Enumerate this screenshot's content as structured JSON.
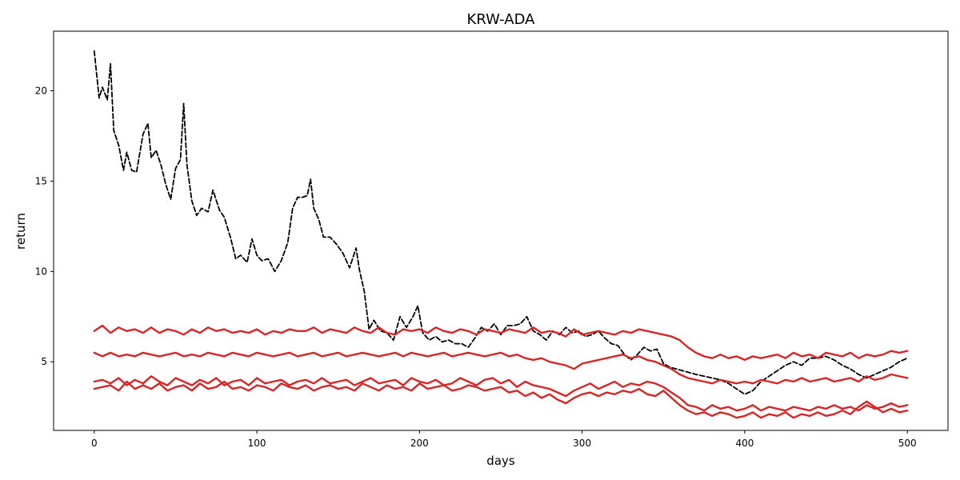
{
  "chart_data": {
    "type": "line",
    "title": "KRW-ADA",
    "xlabel": "days",
    "ylabel": "return",
    "xlim": [
      -25,
      525
    ],
    "ylim": [
      1.2,
      23.3
    ],
    "x_ticks": [
      0,
      100,
      200,
      300,
      400,
      500
    ],
    "y_ticks": [
      5,
      10,
      15,
      20
    ],
    "grid": false,
    "legend": "none",
    "series": [
      {
        "style": "dashed",
        "color": "#000000",
        "x": [
          0,
          3,
          5,
          8,
          10,
          12,
          15,
          18,
          20,
          23,
          26,
          30,
          33,
          35,
          38,
          41,
          44,
          47,
          50,
          53,
          55,
          57,
          60,
          63,
          66,
          70,
          73,
          77,
          80,
          84,
          87,
          90,
          94,
          97,
          100,
          103,
          107,
          111,
          115,
          119,
          122,
          125,
          128,
          131,
          133,
          135,
          138,
          141,
          145,
          149,
          153,
          157,
          161,
          163,
          166,
          169,
          172,
          176,
          180,
          184,
          188,
          192,
          196,
          199,
          202,
          206,
          210,
          214,
          218,
          222,
          226,
          230,
          234,
          238,
          242,
          246,
          250,
          254,
          258,
          262,
          266,
          270,
          274,
          278,
          282,
          286,
          290,
          294,
          298,
          302,
          306,
          310,
          314,
          318,
          322,
          326,
          330,
          334,
          338,
          342,
          346,
          350,
          354,
          358,
          362,
          366,
          370,
          375,
          380,
          385,
          390,
          395,
          400,
          405,
          410,
          415,
          420,
          425,
          430,
          435,
          440,
          445,
          450,
          455,
          460,
          465,
          470,
          475,
          480,
          485,
          490,
          495,
          500
        ],
        "y": [
          22.2,
          19.6,
          20.2,
          19.5,
          21.5,
          17.8,
          17.0,
          15.6,
          16.6,
          15.6,
          15.5,
          17.6,
          18.2,
          16.3,
          16.7,
          15.9,
          14.8,
          14.0,
          15.7,
          16.2,
          19.3,
          15.9,
          13.9,
          13.1,
          13.5,
          13.3,
          14.5,
          13.4,
          13.0,
          11.8,
          10.7,
          10.9,
          10.5,
          11.8,
          10.9,
          10.6,
          10.7,
          10.0,
          10.6,
          11.6,
          13.5,
          14.1,
          14.1,
          14.2,
          15.1,
          13.5,
          12.9,
          11.9,
          11.9,
          11.5,
          11.0,
          10.2,
          11.3,
          10.1,
          8.9,
          6.8,
          7.3,
          6.7,
          6.6,
          6.2,
          7.5,
          6.9,
          7.5,
          8.1,
          6.6,
          6.2,
          6.4,
          6.1,
          6.2,
          6.0,
          6.0,
          5.8,
          6.3,
          6.9,
          6.7,
          7.1,
          6.5,
          7.0,
          7.0,
          7.1,
          7.5,
          6.7,
          6.5,
          6.2,
          6.7,
          6.5,
          6.9,
          6.6,
          6.7,
          6.4,
          6.5,
          6.7,
          6.3,
          6.0,
          5.9,
          5.4,
          5.1,
          5.4,
          5.8,
          5.6,
          5.7,
          4.9,
          4.7,
          4.6,
          4.5,
          4.4,
          4.3,
          4.2,
          4.1,
          4.0,
          3.8,
          3.5,
          3.2,
          3.4,
          3.9,
          4.2,
          4.5,
          4.8,
          5.0,
          4.8,
          5.2,
          5.2,
          5.3,
          5.1,
          4.8,
          4.6,
          4.3,
          4.1,
          4.3,
          4.5,
          4.7,
          5.0,
          5.2
        ]
      },
      {
        "style": "solid",
        "color": "#d62728",
        "x": [
          0,
          5,
          10,
          15,
          20,
          25,
          30,
          35,
          40,
          45,
          50,
          55,
          60,
          65,
          70,
          75,
          80,
          85,
          90,
          95,
          100,
          105,
          110,
          115,
          120,
          125,
          130,
          135,
          140,
          145,
          150,
          155,
          160,
          165,
          170,
          175,
          180,
          185,
          190,
          195,
          200,
          205,
          210,
          215,
          220,
          225,
          230,
          235,
          240,
          245,
          250,
          255,
          260,
          265,
          270,
          275,
          280,
          285,
          290,
          295,
          300,
          305,
          310,
          315,
          320,
          325,
          330,
          335,
          340,
          345,
          350,
          355,
          360,
          365,
          370,
          375,
          380,
          385,
          390,
          395,
          400,
          405,
          410,
          415,
          420,
          425,
          430,
          435,
          440,
          445,
          450,
          455,
          460,
          465,
          470,
          475,
          480,
          485,
          490,
          495,
          500
        ],
        "y": [
          6.7,
          7.0,
          6.6,
          6.9,
          6.7,
          6.8,
          6.6,
          6.9,
          6.6,
          6.8,
          6.7,
          6.5,
          6.8,
          6.6,
          6.9,
          6.7,
          6.8,
          6.6,
          6.7,
          6.6,
          6.8,
          6.5,
          6.7,
          6.6,
          6.8,
          6.7,
          6.7,
          6.9,
          6.6,
          6.8,
          6.7,
          6.6,
          6.9,
          6.7,
          6.6,
          6.9,
          6.6,
          6.5,
          6.8,
          6.7,
          6.8,
          6.6,
          6.9,
          6.7,
          6.6,
          6.8,
          6.7,
          6.5,
          6.8,
          6.7,
          6.6,
          6.8,
          6.7,
          6.6,
          6.9,
          6.6,
          6.7,
          6.6,
          6.4,
          6.8,
          6.5,
          6.6,
          6.7,
          6.6,
          6.5,
          6.7,
          6.6,
          6.8,
          6.7,
          6.6,
          6.5,
          6.4,
          6.2,
          5.8,
          5.5,
          5.3,
          5.2,
          5.4,
          5.2,
          5.3,
          5.1,
          5.3,
          5.2,
          5.3,
          5.4,
          5.2,
          5.5,
          5.3,
          5.4,
          5.2,
          5.5,
          5.4,
          5.3,
          5.5,
          5.2,
          5.4,
          5.3,
          5.4,
          5.6,
          5.5,
          5.6
        ]
      },
      {
        "style": "solid",
        "color": "#d62728",
        "x": [
          0,
          5,
          10,
          15,
          20,
          25,
          30,
          35,
          40,
          45,
          50,
          55,
          60,
          65,
          70,
          75,
          80,
          85,
          90,
          95,
          100,
          105,
          110,
          115,
          120,
          125,
          130,
          135,
          140,
          145,
          150,
          155,
          160,
          165,
          170,
          175,
          180,
          185,
          190,
          195,
          200,
          205,
          210,
          215,
          220,
          225,
          230,
          235,
          240,
          245,
          250,
          255,
          260,
          265,
          270,
          275,
          280,
          285,
          290,
          295,
          300,
          305,
          310,
          315,
          320,
          325,
          330,
          335,
          340,
          345,
          350,
          355,
          360,
          365,
          370,
          375,
          380,
          385,
          390,
          395,
          400,
          405,
          410,
          415,
          420,
          425,
          430,
          435,
          440,
          445,
          450,
          455,
          460,
          465,
          470,
          475,
          480,
          485,
          490,
          495,
          500
        ],
        "y": [
          5.5,
          5.3,
          5.5,
          5.3,
          5.4,
          5.3,
          5.5,
          5.4,
          5.3,
          5.4,
          5.5,
          5.3,
          5.4,
          5.3,
          5.5,
          5.4,
          5.3,
          5.5,
          5.4,
          5.3,
          5.5,
          5.4,
          5.3,
          5.4,
          5.5,
          5.3,
          5.4,
          5.5,
          5.3,
          5.4,
          5.5,
          5.3,
          5.4,
          5.5,
          5.4,
          5.3,
          5.4,
          5.5,
          5.3,
          5.5,
          5.4,
          5.3,
          5.4,
          5.5,
          5.3,
          5.4,
          5.5,
          5.4,
          5.3,
          5.4,
          5.5,
          5.3,
          5.4,
          5.2,
          5.1,
          5.2,
          5.0,
          4.9,
          4.8,
          4.6,
          4.9,
          5.0,
          5.1,
          5.2,
          5.3,
          5.4,
          5.2,
          5.3,
          5.1,
          5.0,
          4.8,
          4.6,
          4.3,
          4.1,
          4.0,
          3.9,
          3.8,
          4.0,
          3.9,
          3.8,
          3.9,
          3.8,
          4.0,
          3.9,
          3.8,
          4.0,
          3.9,
          4.1,
          3.9,
          4.0,
          4.1,
          3.9,
          4.0,
          4.1,
          3.9,
          4.2,
          4.0,
          4.1,
          4.3,
          4.2,
          4.1
        ]
      },
      {
        "style": "solid",
        "color": "#d62728",
        "x": [
          0,
          5,
          10,
          15,
          20,
          25,
          30,
          35,
          40,
          45,
          50,
          55,
          60,
          65,
          70,
          75,
          80,
          85,
          90,
          95,
          100,
          105,
          110,
          115,
          120,
          125,
          130,
          135,
          140,
          145,
          150,
          155,
          160,
          165,
          170,
          175,
          180,
          185,
          190,
          195,
          200,
          205,
          210,
          215,
          220,
          225,
          230,
          235,
          240,
          245,
          250,
          255,
          260,
          265,
          270,
          275,
          280,
          285,
          290,
          295,
          300,
          305,
          310,
          315,
          320,
          325,
          330,
          335,
          340,
          345,
          350,
          355,
          360,
          365,
          370,
          375,
          380,
          385,
          390,
          395,
          400,
          405,
          410,
          415,
          420,
          425,
          430,
          435,
          440,
          445,
          450,
          455,
          460,
          465,
          470,
          475,
          480,
          485,
          490,
          495,
          500
        ],
        "y": [
          3.9,
          4.0,
          3.8,
          4.1,
          3.7,
          4.0,
          3.8,
          4.2,
          3.9,
          3.7,
          4.1,
          3.9,
          3.7,
          4.0,
          3.8,
          4.1,
          3.7,
          3.9,
          4.0,
          3.7,
          4.1,
          3.8,
          3.9,
          4.0,
          3.7,
          3.9,
          4.0,
          3.8,
          4.1,
          3.8,
          3.9,
          4.0,
          3.7,
          3.9,
          4.1,
          3.8,
          3.9,
          4.0,
          3.7,
          4.1,
          3.9,
          3.8,
          4.0,
          3.7,
          3.8,
          4.1,
          3.9,
          3.7,
          4.0,
          4.1,
          3.8,
          4.0,
          3.6,
          3.9,
          3.7,
          3.6,
          3.5,
          3.3,
          3.1,
          3.4,
          3.6,
          3.8,
          3.5,
          3.7,
          3.9,
          3.6,
          3.8,
          3.7,
          3.9,
          3.8,
          3.6,
          3.3,
          3.0,
          2.6,
          2.5,
          2.3,
          2.6,
          2.4,
          2.5,
          2.3,
          2.4,
          2.6,
          2.3,
          2.5,
          2.4,
          2.3,
          2.5,
          2.4,
          2.3,
          2.5,
          2.4,
          2.6,
          2.4,
          2.5,
          2.3,
          2.6,
          2.4,
          2.5,
          2.7,
          2.5,
          2.6
        ]
      },
      {
        "style": "solid",
        "color": "#d62728",
        "x": [
          0,
          5,
          10,
          15,
          20,
          25,
          30,
          35,
          40,
          45,
          50,
          55,
          60,
          65,
          70,
          75,
          80,
          85,
          90,
          95,
          100,
          105,
          110,
          115,
          120,
          125,
          130,
          135,
          140,
          145,
          150,
          155,
          160,
          165,
          170,
          175,
          180,
          185,
          190,
          195,
          200,
          205,
          210,
          215,
          220,
          225,
          230,
          235,
          240,
          245,
          250,
          255,
          260,
          265,
          270,
          275,
          280,
          285,
          290,
          295,
          300,
          305,
          310,
          315,
          320,
          325,
          330,
          335,
          340,
          345,
          350,
          355,
          360,
          365,
          370,
          375,
          380,
          385,
          390,
          395,
          400,
          405,
          410,
          415,
          420,
          425,
          430,
          435,
          440,
          445,
          450,
          455,
          460,
          465,
          470,
          475,
          480,
          485,
          490,
          495,
          500
        ],
        "y": [
          3.5,
          3.6,
          3.7,
          3.4,
          3.9,
          3.5,
          3.7,
          3.5,
          3.8,
          3.4,
          3.6,
          3.7,
          3.4,
          3.8,
          3.5,
          3.6,
          3.9,
          3.5,
          3.6,
          3.4,
          3.7,
          3.6,
          3.4,
          3.8,
          3.6,
          3.5,
          3.7,
          3.4,
          3.6,
          3.7,
          3.5,
          3.6,
          3.4,
          3.8,
          3.6,
          3.4,
          3.7,
          3.5,
          3.6,
          3.4,
          3.8,
          3.5,
          3.6,
          3.7,
          3.4,
          3.5,
          3.7,
          3.6,
          3.4,
          3.5,
          3.6,
          3.3,
          3.4,
          3.1,
          3.3,
          3.0,
          3.2,
          2.9,
          2.7,
          3.0,
          3.2,
          3.3,
          3.1,
          3.3,
          3.2,
          3.4,
          3.3,
          3.5,
          3.2,
          3.1,
          3.4,
          3.0,
          2.6,
          2.3,
          2.1,
          2.2,
          2.0,
          2.2,
          2.1,
          1.9,
          2.0,
          2.2,
          1.9,
          2.1,
          2.0,
          2.2,
          1.9,
          2.1,
          2.0,
          2.2,
          2.0,
          2.1,
          2.3,
          2.1,
          2.5,
          2.8,
          2.5,
          2.2,
          2.4,
          2.2,
          2.3
        ]
      }
    ]
  }
}
